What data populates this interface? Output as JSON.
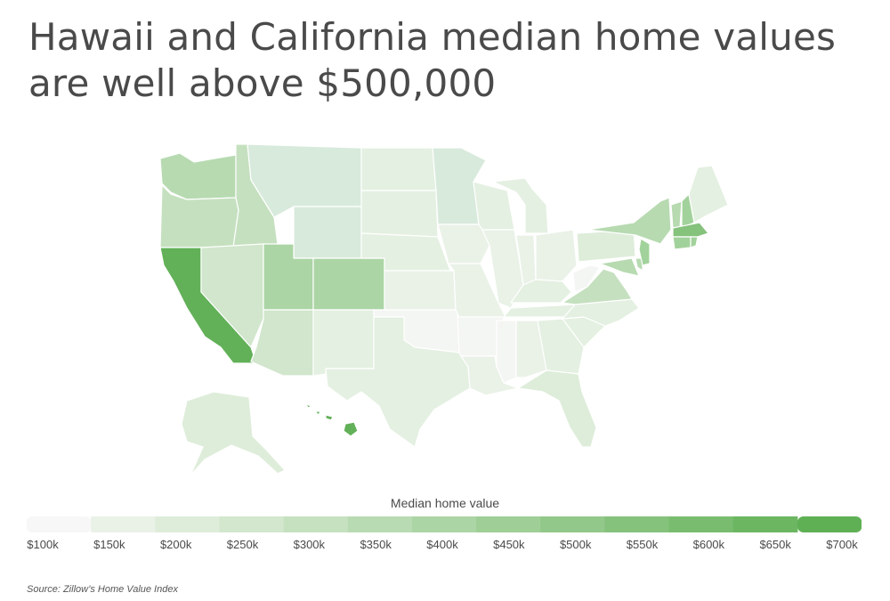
{
  "title": "Hawaii and California median home values are well above $500,000",
  "legend": {
    "title": "Median home value",
    "ticks": [
      "$100k",
      "$150k",
      "$200k",
      "$250k",
      "$300k",
      "$350k",
      "$400k",
      "$450k",
      "$500k",
      "$550k",
      "$600k",
      "$650k",
      "$700k"
    ],
    "colors": [
      "#f7f7f7",
      "#eaf2e8",
      "#deedda",
      "#d2e7cd",
      "#c6e1c0",
      "#b9dbb3",
      "#acd5a5",
      "#9fcf97",
      "#92c889",
      "#85c27c",
      "#79bc6f",
      "#6cb662",
      "#5fb055"
    ]
  },
  "source": "Source:  Zillow’s Home Value Index",
  "colors": {
    "title": "#4a4a4a",
    "border": "#ffffff"
  }
}
